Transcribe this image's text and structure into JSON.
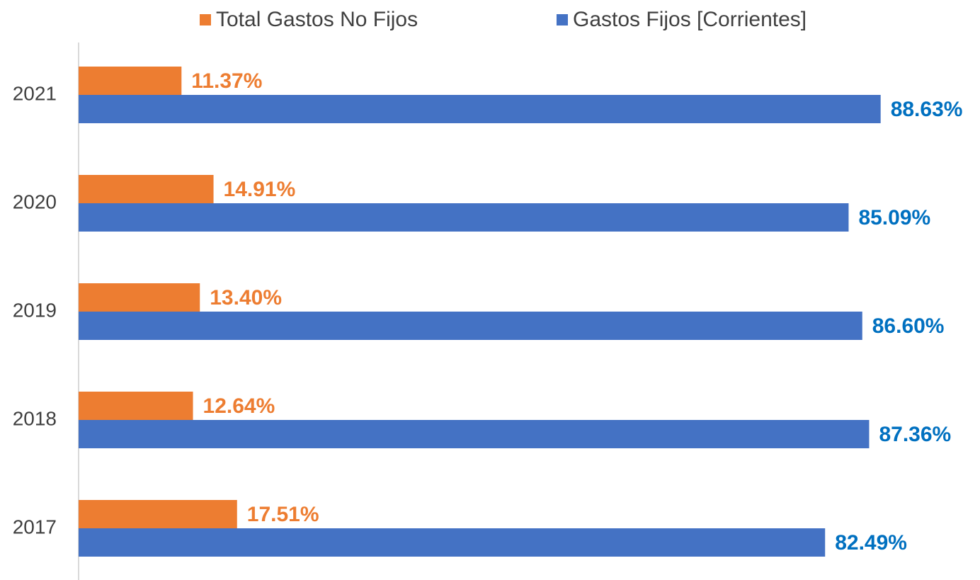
{
  "chart_data": {
    "type": "bar",
    "orientation": "horizontal",
    "categories": [
      "2021",
      "2020",
      "2019",
      "2018",
      "2017"
    ],
    "series": [
      {
        "name": "Total Gastos No Fijos",
        "color": "#ed7d31",
        "label_color": "#ed7d31",
        "values": [
          11.37,
          14.91,
          13.4,
          12.64,
          17.51
        ],
        "value_labels": [
          "11.37%",
          "14.91%",
          "13.40%",
          "12.64%",
          "17.51%"
        ]
      },
      {
        "name": "Gastos Fijos [Corrientes]",
        "color": "#4472c4",
        "label_color": "#0070c0",
        "values": [
          88.63,
          85.09,
          86.6,
          87.36,
          82.49
        ],
        "value_labels": [
          "88.63%",
          "85.09%",
          "86.60%",
          "87.36%",
          "82.49%"
        ]
      }
    ],
    "xlim": [
      0,
      100
    ],
    "legend": "top"
  }
}
